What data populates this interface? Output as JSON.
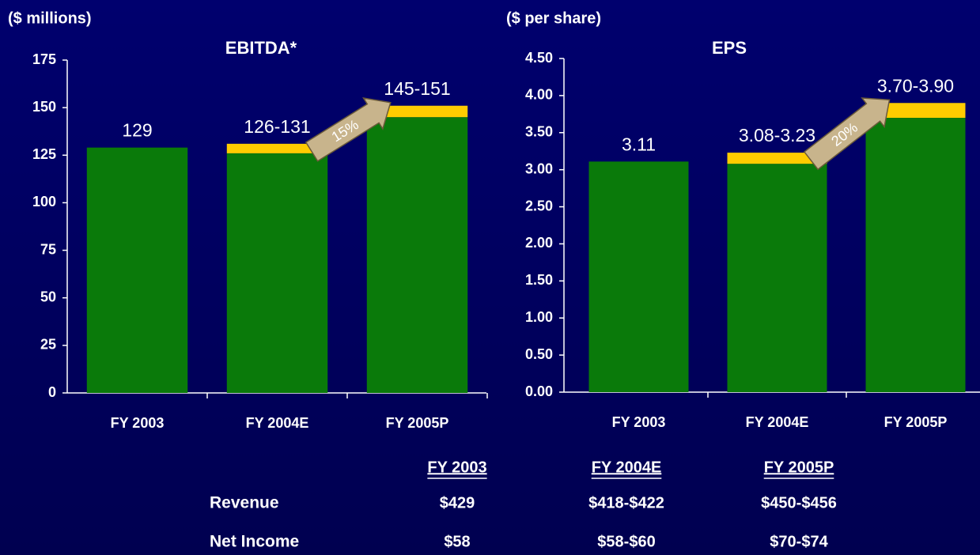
{
  "chart_data": [
    {
      "type": "bar",
      "title": "EBITDA*",
      "y_label": "($ millions)",
      "categories": [
        "FY 2003",
        "FY 2004E",
        "FY 2005P"
      ],
      "series": [
        {
          "color": "#0a7a0a",
          "values": [
            129,
            126,
            145
          ],
          "value_labels": [
            "129",
            "126-131",
            "145-151"
          ]
        },
        {
          "color": "#ffcc00",
          "values": [
            null,
            5,
            6
          ]
        }
      ],
      "ylim": [
        0,
        175
      ],
      "yticks": [
        0,
        25,
        50,
        75,
        100,
        125,
        150,
        175
      ],
      "annotations": [
        "15%"
      ]
    },
    {
      "type": "bar",
      "title": "EPS",
      "y_label": "($ per share)",
      "categories": [
        "FY 2003",
        "FY 2004E",
        "FY 2005P"
      ],
      "series": [
        {
          "color": "#0a7a0a",
          "values": [
            3.11,
            3.08,
            3.7
          ],
          "value_labels": [
            "3.11",
            "3.08-3.23",
            "3.70-3.90"
          ]
        },
        {
          "color": "#ffcc00",
          "values": [
            null,
            0.15,
            0.2
          ]
        }
      ],
      "ylim": [
        0,
        4.5
      ],
      "yticks": [
        {
          "value": 0,
          "label": "0.00"
        },
        {
          "value": 0.5,
          "label": "0.50"
        },
        {
          "value": 1,
          "label": "1.00"
        },
        {
          "value": 1.5,
          "label": "1.50"
        },
        {
          "value": 2,
          "label": "2.00"
        },
        {
          "value": 2.5,
          "label": "2.50"
        },
        {
          "value": 3,
          "label": "3.00"
        },
        {
          "value": 3.5,
          "label": "3.50"
        },
        {
          "value": 4,
          "label": "4.00"
        },
        {
          "value": 4.5,
          "label": "4.50"
        }
      ],
      "annotations": [
        "20%"
      ]
    }
  ],
  "table": {
    "header": [
      "FY 2003",
      "FY 2004E",
      "FY 2005P"
    ],
    "rows": [
      [
        "Revenue",
        "$429",
        "$418-$422",
        "$450-$456"
      ],
      [
        "Net Income",
        "$58",
        "$58-$60",
        "$70-$74"
      ]
    ]
  }
}
